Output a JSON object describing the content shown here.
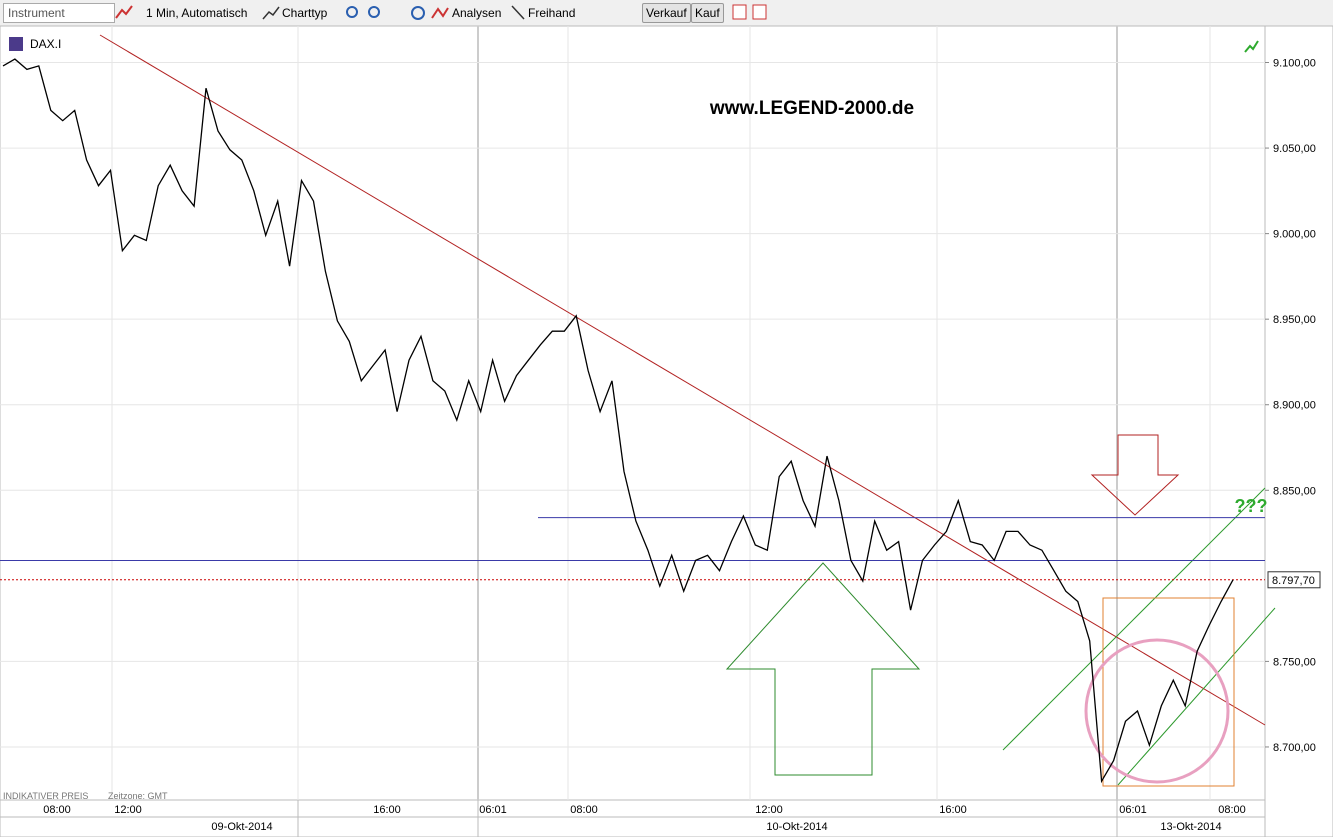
{
  "toolbar": {
    "instrument": "Instrument",
    "interval": "1 Min, Automatisch",
    "charttype": "Charttyp",
    "analysis": "Analysen",
    "freehand": "Freihand",
    "sell": "Verkauf",
    "buy": "Kauf"
  },
  "chart_data": {
    "type": "line",
    "symbol": "DAX.I",
    "watermark": "www.LEGEND-2000.de",
    "annotation": "???",
    "footer": "INDIKATIVER PREIS",
    "timezone": "Zeitzone: GMT",
    "color": "#000000",
    "values": [
      9098,
      9102,
      9096,
      9098,
      9072,
      9066,
      9072,
      9043,
      9028,
      9037,
      8990,
      8999,
      8996,
      9028,
      9040,
      9025,
      9016,
      9085,
      9060,
      9049,
      9043,
      9025,
      8999,
      9019,
      8981,
      9031,
      9019,
      8978,
      8949,
      8937,
      8914,
      8923,
      8932,
      8896,
      8926,
      8940,
      8914,
      8908,
      8891,
      8914,
      8896,
      8926,
      8902,
      8917,
      8926,
      8935,
      8943,
      8943,
      8952,
      8920,
      8896,
      8914,
      8861,
      8832,
      8815,
      8794,
      8812,
      8791,
      8809,
      8812,
      8803,
      8820,
      8835,
      8818,
      8815,
      8858,
      8867,
      8844,
      8829,
      8870,
      8844,
      8809,
      8797,
      8832,
      8815,
      8820,
      8780,
      8809,
      8818,
      8826,
      8844,
      8820,
      8818,
      8809,
      8826,
      8826,
      8818,
      8815,
      8803,
      8791,
      8785,
      8762,
      8680,
      8692,
      8715,
      8721,
      8701,
      8724,
      8739,
      8724,
      8756,
      8771,
      8785,
      8797.7
    ],
    "ylim": [
      8669,
      9119
    ],
    "yticks": [
      {
        "value": 9100,
        "label": "9.100,00"
      },
      {
        "value": 9050,
        "label": "9.050,00"
      },
      {
        "value": 9000,
        "label": "9.000,00"
      },
      {
        "value": 8950,
        "label": "8.950,00"
      },
      {
        "value": 8900,
        "label": "8.900,00"
      },
      {
        "value": 8850,
        "label": "8.850,00"
      },
      {
        "value": 8750,
        "label": "8.750,00"
      },
      {
        "value": 8700,
        "label": "8.700,00"
      }
    ],
    "levels": [
      8809,
      8834
    ],
    "level_color": "#3a3aa8",
    "last_price": {
      "value": 8797.7,
      "label": "8.797,70"
    },
    "time_labels": [
      "08:00",
      "12:00",
      "16:00",
      "06:01",
      "08:00",
      "12:00",
      "16:00",
      "06:01",
      "08:00"
    ],
    "date_labels": [
      "09-Okt-2014",
      "10-Okt-2014",
      "13-Okt-2014"
    ],
    "grid": true
  }
}
